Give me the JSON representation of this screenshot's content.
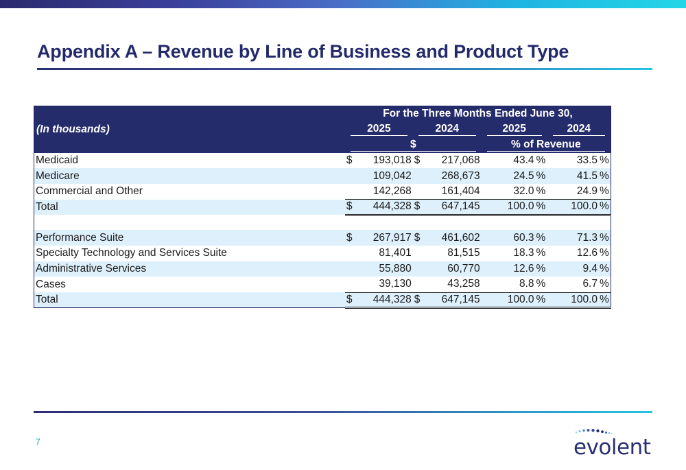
{
  "title": "Appendix A – Revenue by Line of Business and Product Type",
  "table": {
    "unit_label": "(In thousands)",
    "period_header": "For the Three Months Ended June 30,",
    "years": [
      "2025",
      "2024",
      "2025",
      "2024"
    ],
    "group_dollar": "$",
    "group_percent": "% of Revenue",
    "currency": "$",
    "pct_sign": "%",
    "section1": [
      {
        "label": "Medicaid",
        "v2025": "193,018",
        "v2024": "217,068",
        "p2025": "43.4",
        "p2024": "33.5",
        "currency": true
      },
      {
        "label": "Medicare",
        "v2025": "109,042",
        "v2024": "268,673",
        "p2025": "24.5",
        "p2024": "41.5",
        "currency": false
      },
      {
        "label": "Commercial and Other",
        "v2025": "142,268",
        "v2024": "161,404",
        "p2025": "32.0",
        "p2024": "24.9",
        "currency": false
      }
    ],
    "total1": {
      "label": "Total",
      "v2025": "444,328",
      "v2024": "647,145",
      "p2025": "100.0",
      "p2024": "100.0"
    },
    "section2": [
      {
        "label": "Performance Suite",
        "v2025": "267,917",
        "v2024": "461,602",
        "p2025": "60.3",
        "p2024": "71.3",
        "currency": true
      },
      {
        "label": "Specialty Technology and Services Suite",
        "v2025": "81,401",
        "v2024": "81,515",
        "p2025": "18.3",
        "p2024": "12.6",
        "currency": false
      },
      {
        "label": "Administrative Services",
        "v2025": "55,880",
        "v2024": "60,770",
        "p2025": "12.6",
        "p2024": "9.4",
        "currency": false
      },
      {
        "label": "Cases",
        "v2025": "39,130",
        "v2024": "43,258",
        "p2025": "8.8",
        "p2024": "6.7",
        "currency": false
      }
    ],
    "total2": {
      "label": "Total",
      "v2025": "444,328",
      "v2024": "647,145",
      "p2025": "100.0",
      "p2024": "100.0"
    }
  },
  "footer": {
    "page_number": "7",
    "logo_text": "evolent",
    "logo_color": "#2a2f72"
  },
  "colors": {
    "header_bg": "#252c6b",
    "row_shade": "#ddf0fb",
    "accent": "#1fa0dc"
  }
}
